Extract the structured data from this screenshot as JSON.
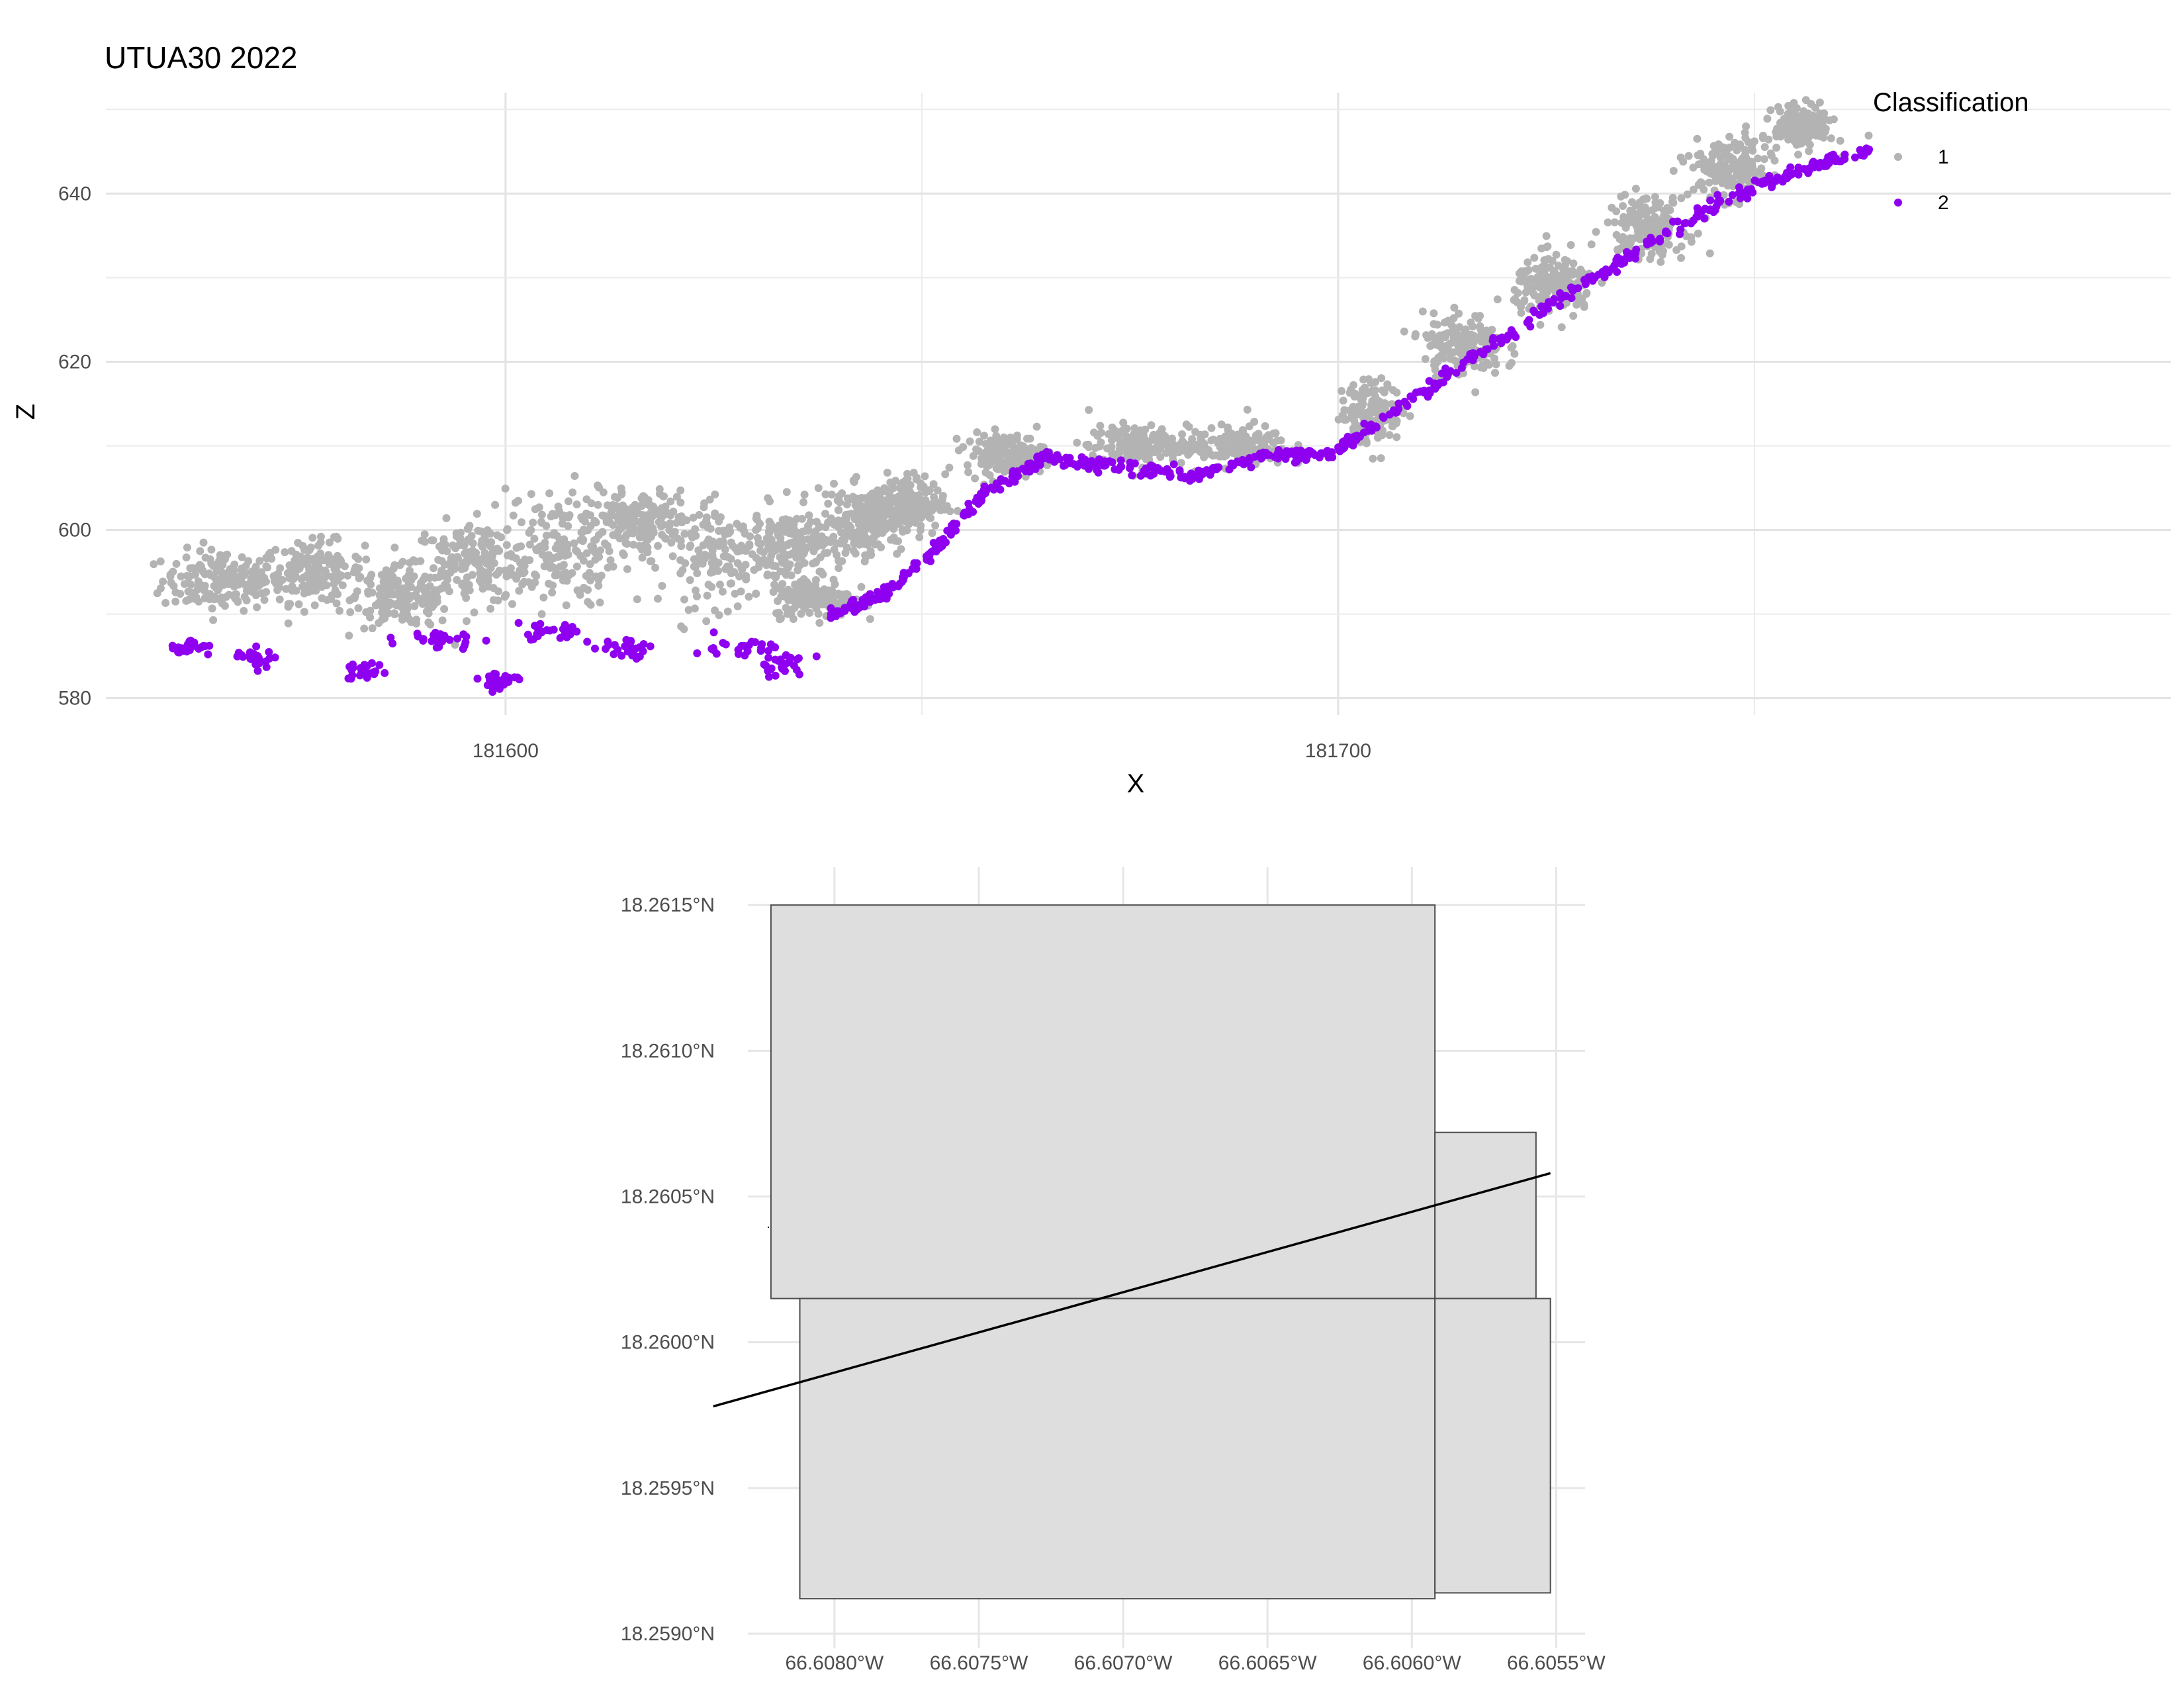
{
  "chart_data": [
    {
      "type": "scatter",
      "title": "UTUA30 2022",
      "xlabel": "X",
      "ylabel": "Z",
      "xlim": [
        181552,
        181800
      ],
      "ylim": [
        578,
        652
      ],
      "x_ticks": [
        181600,
        181700
      ],
      "x_tick_labels": [
        "181600",
        "181700"
      ],
      "y_ticks": [
        580,
        600,
        620,
        640
      ],
      "y_tick_labels": [
        "580",
        "600",
        "620",
        "640"
      ],
      "grid": true,
      "legend": {
        "title": "Classification",
        "position": "top-right",
        "entries": [
          {
            "label": "1",
            "color": "#b3b3b3"
          },
          {
            "label": "2",
            "color": "#8f00f0"
          }
        ]
      },
      "series": [
        {
          "class": "1",
          "color": "#b3b3b3",
          "clusters": [
            {
              "x": 181566,
              "z": 594,
              "sx": 6,
              "sz": 3
            },
            {
              "x": 181577,
              "z": 595,
              "sx": 5,
              "sz": 3
            },
            {
              "x": 181588,
              "z": 592,
              "sx": 5,
              "sz": 3
            },
            {
              "x": 181596,
              "z": 596,
              "sx": 6,
              "sz": 4
            },
            {
              "x": 181606,
              "z": 598,
              "sx": 6,
              "sz": 6
            },
            {
              "x": 181616,
              "z": 601,
              "sx": 5,
              "sz": 3
            },
            {
              "x": 181626,
              "z": 597,
              "sx": 6,
              "sz": 5
            },
            {
              "x": 181635,
              "z": 598,
              "sx": 5,
              "sz": 4
            },
            {
              "x": 181643,
              "z": 601,
              "sx": 4,
              "sz": 3
            },
            {
              "x": 181648,
              "z": 603,
              "sx": 4,
              "sz": 3
            },
            {
              "x": 181637,
              "z": 592,
              "sx": 4,
              "sz": 2
            },
            {
              "x": 181660,
              "z": 609,
              "sx": 4,
              "sz": 2
            },
            {
              "x": 181676,
              "z": 610,
              "sx": 5,
              "sz": 2
            },
            {
              "x": 181688,
              "z": 610,
              "sx": 5,
              "sz": 2
            },
            {
              "x": 181704,
              "z": 614,
              "sx": 3,
              "sz": 3
            },
            {
              "x": 181715,
              "z": 622,
              "sx": 4,
              "sz": 3
            },
            {
              "x": 181726,
              "z": 629,
              "sx": 4,
              "sz": 3
            },
            {
              "x": 181737,
              "z": 636,
              "sx": 4,
              "sz": 3
            },
            {
              "x": 181747,
              "z": 643,
              "sx": 4,
              "sz": 3
            },
            {
              "x": 181756,
              "z": 648,
              "sx": 3,
              "sz": 2
            }
          ]
        },
        {
          "class": "2",
          "color": "#8f00f0",
          "ground_profile": [
            [
              181639,
              590
            ],
            [
              181645,
              592
            ],
            [
              181652,
              598
            ],
            [
              181658,
              605
            ],
            [
              181665,
              608.5
            ],
            [
              181673,
              607.5
            ],
            [
              181683,
              606.5
            ],
            [
              181692,
              609
            ],
            [
              181699,
              609
            ],
            [
              181705,
              613
            ],
            [
              181714,
              619
            ],
            [
              181726,
              627
            ],
            [
              181737,
              634
            ],
            [
              181748,
              640
            ],
            [
              181756,
              643
            ],
            [
              181764,
              645.5
            ]
          ],
          "clusters": [
            {
              "x": 181562,
              "z": 586,
              "sx": 2,
              "sz": 1
            },
            {
              "x": 181570,
              "z": 585,
              "sx": 2,
              "sz": 1
            },
            {
              "x": 181583,
              "z": 583,
              "sx": 2,
              "sz": 1
            },
            {
              "x": 181592,
              "z": 587,
              "sx": 4,
              "sz": 1
            },
            {
              "x": 181606,
              "z": 588,
              "sx": 4,
              "sz": 1
            },
            {
              "x": 181614,
              "z": 586,
              "sx": 3,
              "sz": 1
            },
            {
              "x": 181628,
              "z": 586,
              "sx": 4,
              "sz": 1
            },
            {
              "x": 181599,
              "z": 582,
              "sx": 2,
              "sz": 1
            },
            {
              "x": 181633,
              "z": 584,
              "sx": 3,
              "sz": 1.2
            }
          ]
        }
      ]
    },
    {
      "type": "map",
      "x_tick_labels": [
        "66.6080°W",
        "66.6075°W",
        "66.6070°W",
        "66.6065°W",
        "66.6060°W",
        "66.6055°W"
      ],
      "y_tick_labels": [
        "18.2590°N",
        "18.2595°N",
        "18.2600°N",
        "18.2605°N",
        "18.2610°N",
        "18.2615°N"
      ],
      "lon_ticks": [
        -66.608,
        -66.6075,
        -66.607,
        -66.6065,
        -66.606,
        -66.6055
      ],
      "lat_ticks": [
        18.259,
        18.2595,
        18.26,
        18.2605,
        18.261,
        18.2615
      ],
      "xlim": [
        -66.6083,
        -66.6054
      ],
      "ylim": [
        18.25895,
        18.26163
      ],
      "grid": true,
      "tiles": [
        {
          "lon": [
            -66.60822,
            -66.60592
          ],
          "lat": [
            18.26015,
            18.2615
          ],
          "fill": "#dedede"
        },
        {
          "lon": [
            -66.60592,
            -66.60557
          ],
          "lat": [
            18.26015,
            18.26072
          ],
          "fill": "#dedede"
        },
        {
          "lon": [
            -66.60812,
            -66.60592
          ],
          "lat": [
            18.25912,
            18.26015
          ],
          "fill": "#dedede"
        },
        {
          "lon": [
            -66.60592,
            -66.60552
          ],
          "lat": [
            18.25914,
            18.26015
          ],
          "fill": "#dedede"
        }
      ],
      "transect": [
        [
          -66.60842,
          18.25978
        ],
        [
          -66.60552,
          18.26058
        ]
      ],
      "transect_color": "#000000"
    }
  ]
}
